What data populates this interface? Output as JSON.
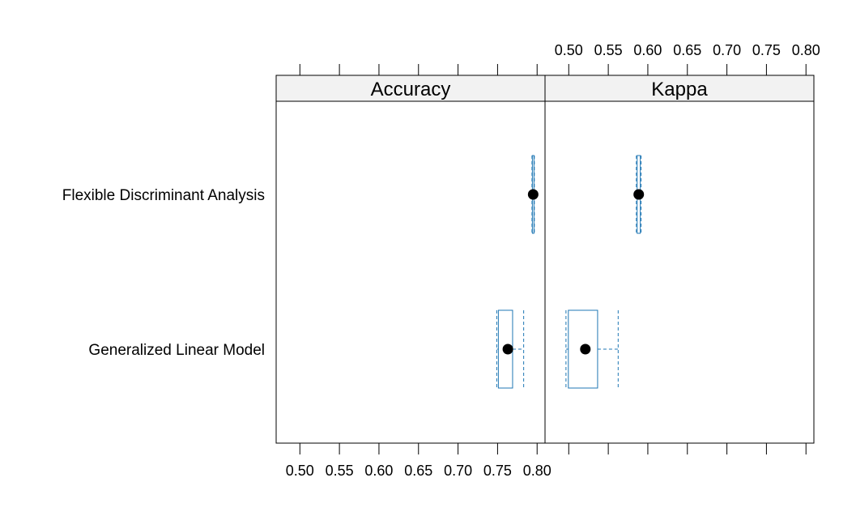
{
  "chart_data": {
    "type": "box",
    "categories": [
      "Flexible Discriminant Analysis",
      "Generalized Linear Model"
    ],
    "panels": [
      {
        "name": "Accuracy",
        "tick_axis": "bottom",
        "xlim": [
          0.47,
          0.81
        ],
        "ticks": [
          0.5,
          0.55,
          0.6,
          0.65,
          0.7,
          0.75,
          0.8
        ],
        "tick_labels": [
          "0.50",
          "0.55",
          "0.60",
          "0.65",
          "0.70",
          "0.75",
          "0.80"
        ],
        "boxes": [
          {
            "category": "Flexible Discriminant Analysis",
            "min": 0.7935,
            "q1": 0.794,
            "median": 0.795,
            "q3": 0.796,
            "max": 0.7965
          },
          {
            "category": "Generalized Linear Model",
            "min": 0.749,
            "q1": 0.751,
            "median": 0.763,
            "q3": 0.769,
            "max": 0.783
          }
        ]
      },
      {
        "name": "Kappa",
        "tick_axis": "top",
        "xlim": [
          0.47,
          0.81
        ],
        "ticks": [
          0.5,
          0.55,
          0.6,
          0.65,
          0.7,
          0.75,
          0.8
        ],
        "tick_labels": [
          "0.50",
          "0.55",
          "0.60",
          "0.65",
          "0.70",
          "0.75",
          "0.80"
        ],
        "boxes": [
          {
            "category": "Flexible Discriminant Analysis",
            "min": 0.5855,
            "q1": 0.5865,
            "median": 0.5885,
            "q3": 0.5905,
            "max": 0.5915
          },
          {
            "category": "Generalized Linear Model",
            "min": 0.4965,
            "q1": 0.4995,
            "median": 0.521,
            "q3": 0.5365,
            "max": 0.5625
          }
        ]
      }
    ],
    "colors": {
      "box": "#1f77b4",
      "median_dot": "#000000",
      "strip_bg": "#f2f2f2",
      "frame": "#000000"
    },
    "grid": false,
    "legend": "none"
  }
}
